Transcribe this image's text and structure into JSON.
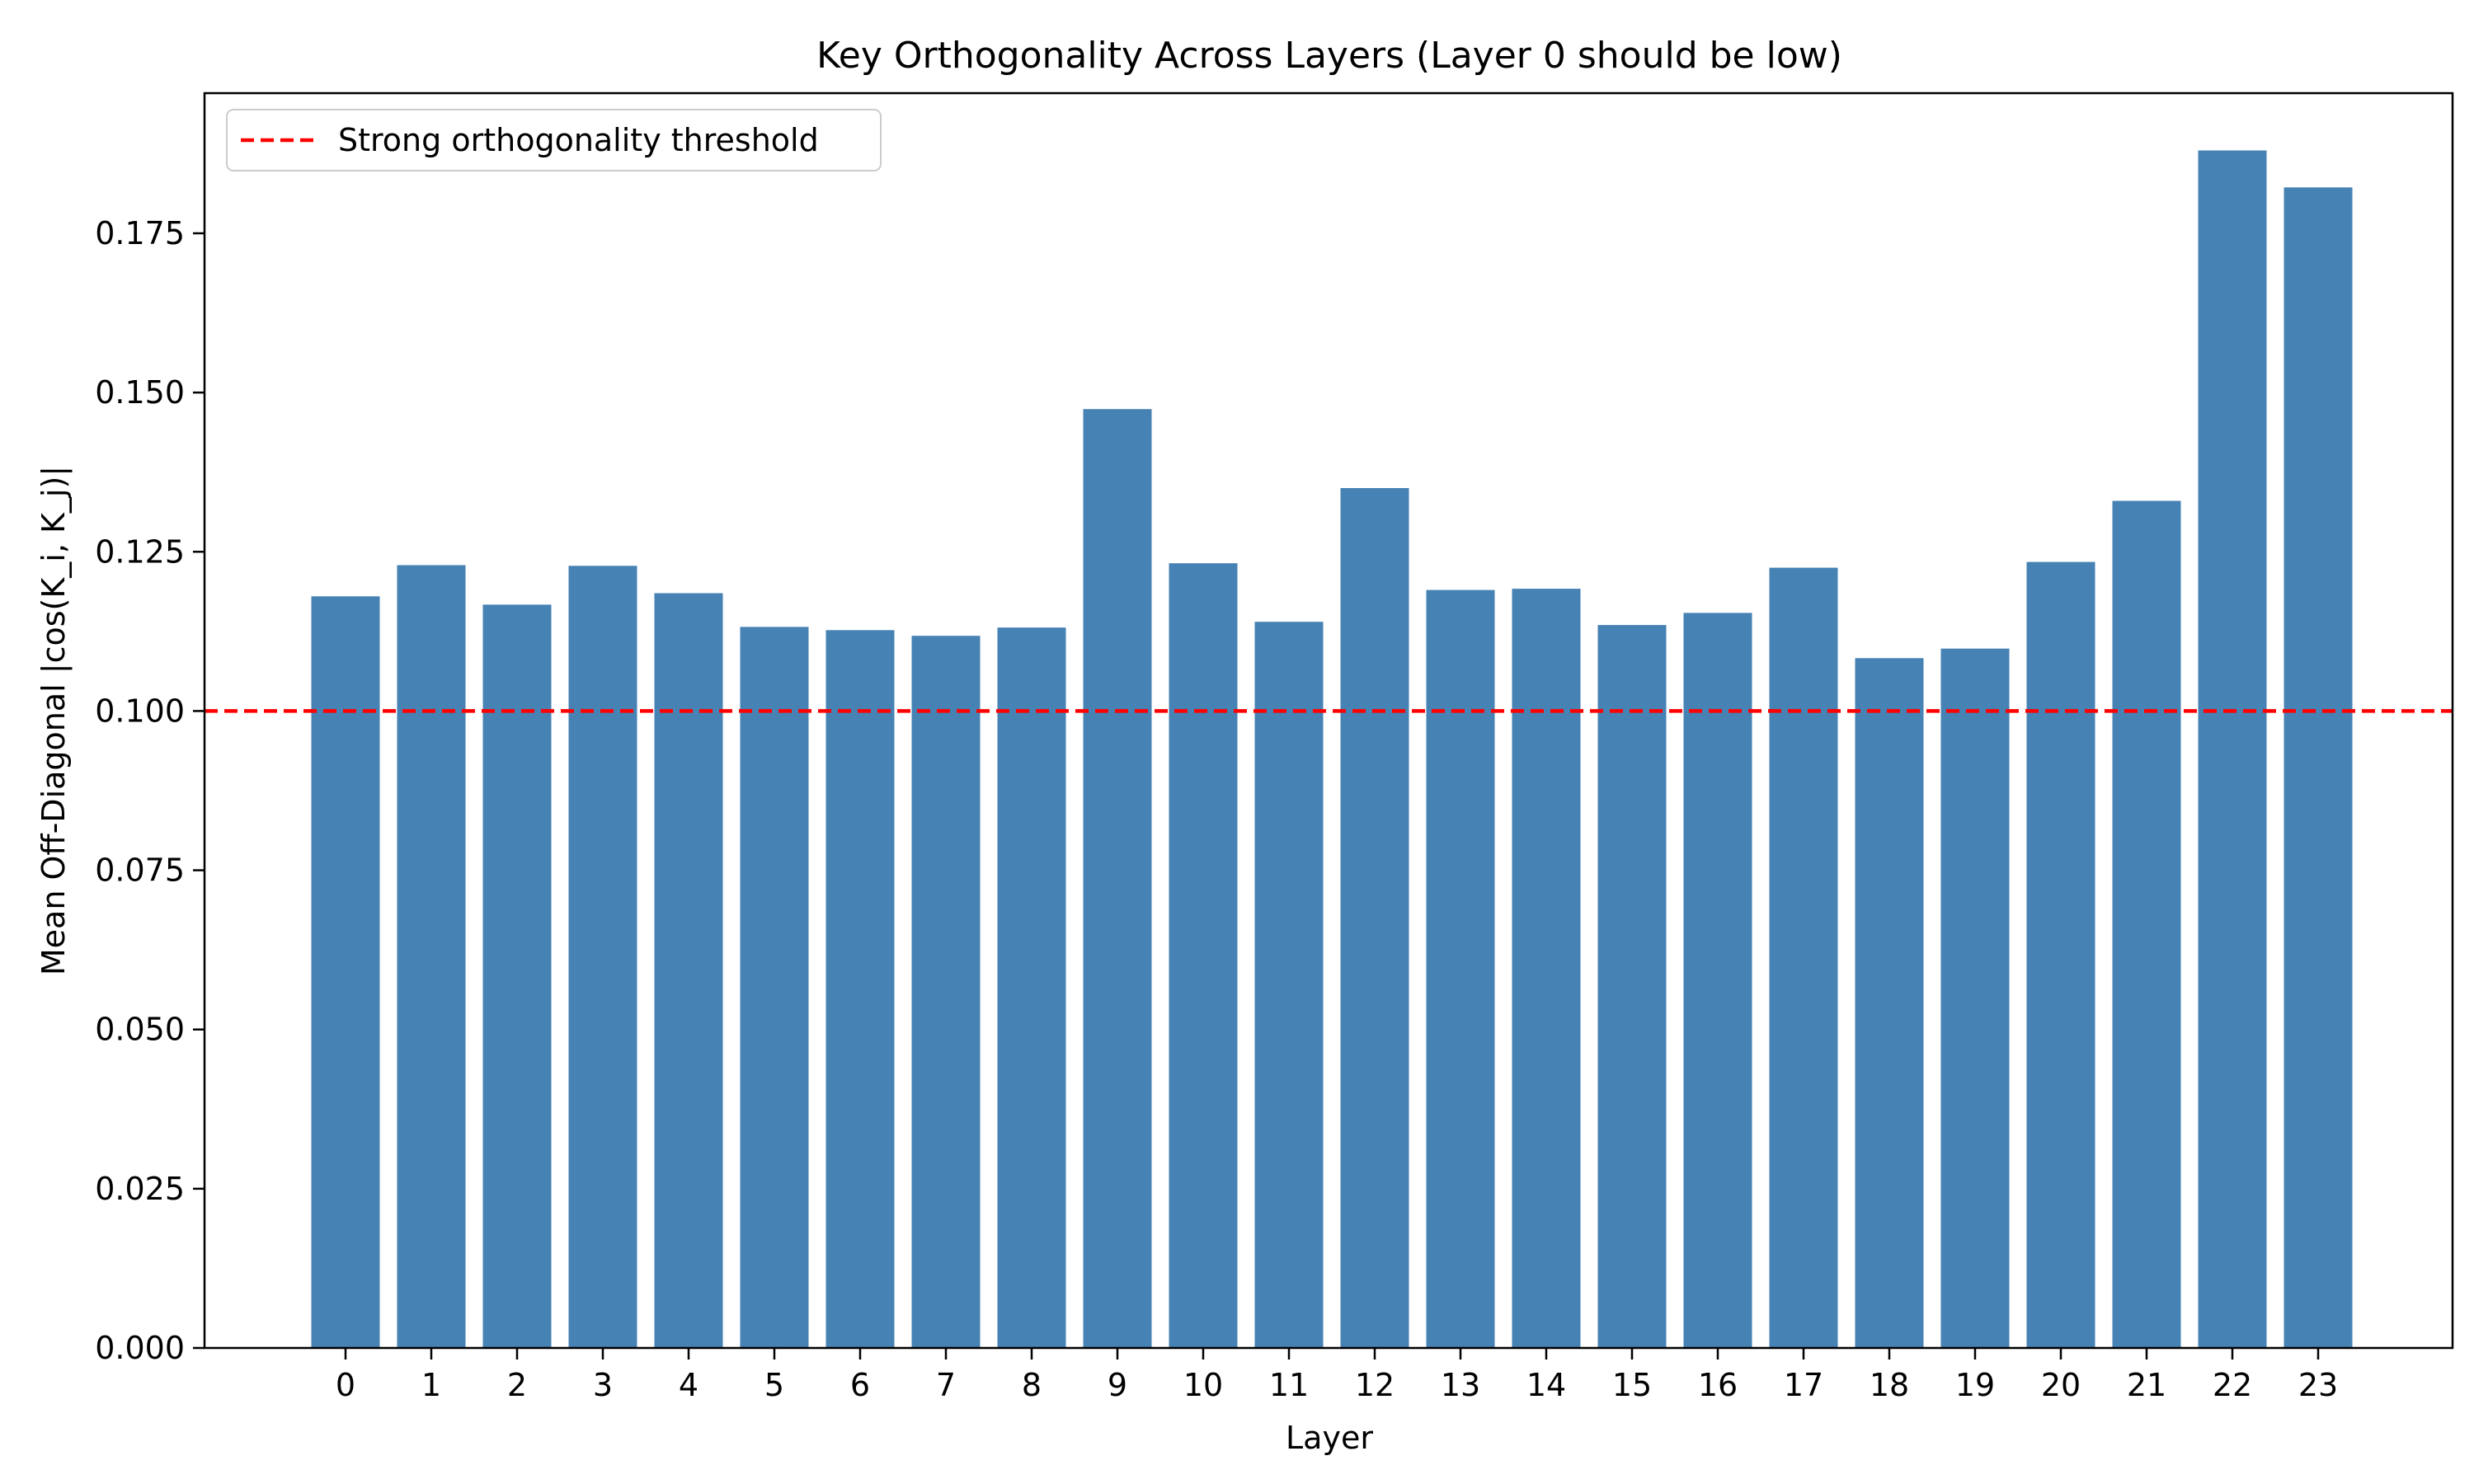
{
  "chart_data": {
    "type": "bar",
    "title": "Key Orthogonality Across Layers (Layer 0 should be low)",
    "xlabel": "Layer",
    "ylabel": "Mean Off-Diagonal |cos(K_i, K_j)|",
    "categories": [
      "0",
      "1",
      "2",
      "3",
      "4",
      "5",
      "6",
      "7",
      "8",
      "9",
      "10",
      "11",
      "12",
      "13",
      "14",
      "15",
      "16",
      "17",
      "18",
      "19",
      "20",
      "21",
      "22",
      "23"
    ],
    "values": [
      0.118,
      0.1229,
      0.1167,
      0.1228,
      0.1185,
      0.1132,
      0.1127,
      0.1118,
      0.1131,
      0.1474,
      0.1232,
      0.114,
      0.135,
      0.119,
      0.1192,
      0.1135,
      0.1154,
      0.1225,
      0.1083,
      0.1098,
      0.1234,
      0.133,
      0.188,
      0.1822
    ],
    "ylim": [
      0,
      0.197
    ],
    "yticks": [
      "0.000",
      "0.025",
      "0.050",
      "0.075",
      "0.100",
      "0.125",
      "0.150",
      "0.175"
    ],
    "bar_color": "#4682b4",
    "threshold": {
      "value": 0.1,
      "label": "Strong orthogonality threshold",
      "color": "#ff0000",
      "style": "dashed"
    },
    "legend": {
      "position": "top-left"
    },
    "grid": false
  }
}
